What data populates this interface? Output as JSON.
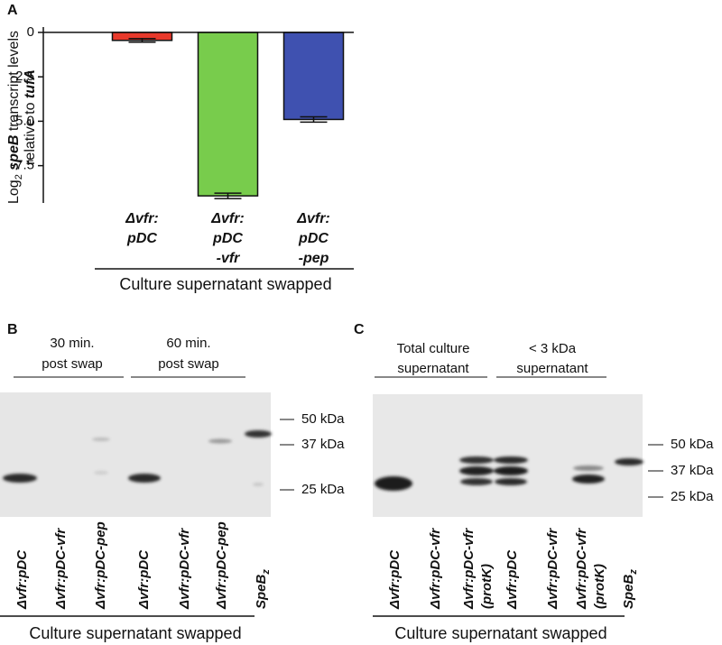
{
  "chart_data": {
    "type": "bar",
    "panel_label": "A",
    "y_label": [
      [
        "Log",
        "2",
        " speB",
        " transcript levels"
      ],
      [
        "relative to ",
        "tufA"
      ]
    ],
    "categories": [
      [
        "Δvfr:",
        "pDC"
      ],
      [
        "Δvfr:",
        "pDC",
        "-vfr"
      ],
      [
        "Δvfr:",
        "pDC",
        "-pep"
      ]
    ],
    "values": [
      -0.45,
      -9.2,
      -4.9
    ],
    "errors": [
      0.1,
      0.15,
      0.15
    ],
    "colors": [
      "#e8392b",
      "#78cc4c",
      "#3f51b0"
    ],
    "ylim": [
      -9.6,
      0.3
    ],
    "yticks": [
      0,
      -2.5,
      {
        "value": -5,
        "label": "-5.0"
      },
      -7.5
    ],
    "x_group_label": "Culture supernatant swapped"
  },
  "panel_b": {
    "label": "B",
    "headers": [
      [
        "30 min.",
        "post swap"
      ],
      [
        "60 min.",
        "post swap"
      ]
    ],
    "markers": [
      "50 kDa",
      "37 kDa",
      "25 kDa"
    ],
    "lanes": [
      [
        "Δvfr:pDC"
      ],
      [
        "Δvfr:pDC-vfr"
      ],
      [
        "Δvfr:pDC-pep"
      ],
      [
        "Δvfr:pDC"
      ],
      [
        "Δvfr:pDC-vfr"
      ],
      [
        "Δvfr:pDC-pep"
      ]
    ],
    "standard": [
      "SpeB",
      "z"
    ],
    "footer": "Culture supernatant swapped"
  },
  "panel_c": {
    "label": "C",
    "headers": [
      [
        "Total culture",
        "supernatant"
      ],
      [
        "< 3 kDa",
        "supernatant"
      ]
    ],
    "markers": [
      "50 kDa",
      "37 kDa",
      "25 kDa"
    ],
    "lanes": [
      [
        "Δvfr:pDC"
      ],
      [
        "Δvfr:pDC-vfr"
      ],
      [
        "Δvfr:pDC-vfr",
        "(protK)"
      ],
      [
        "Δvfr:pDC"
      ],
      [
        "Δvfr:pDC-vfr"
      ],
      [
        "Δvfr:pDC-vfr",
        "(protK)"
      ]
    ],
    "standard": [
      "SpeB",
      "z"
    ],
    "footer": "Culture supernatant swapped"
  }
}
